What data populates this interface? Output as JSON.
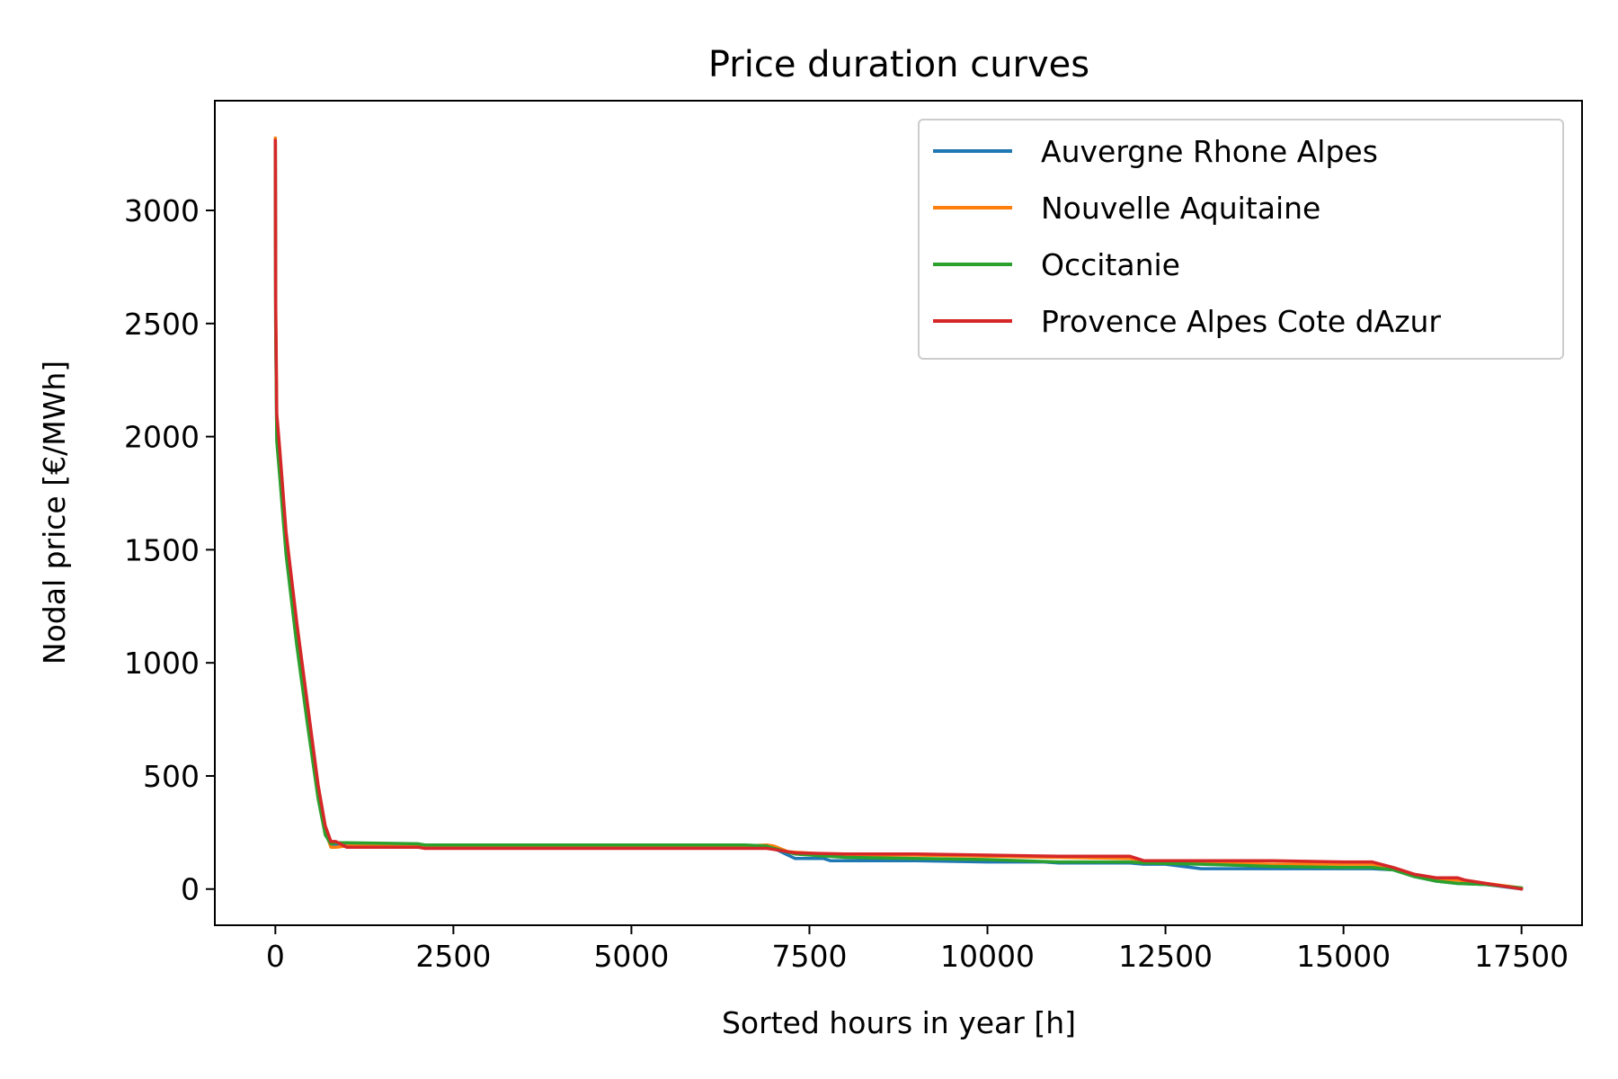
{
  "chart_data": {
    "type": "line",
    "title": "Price duration curves",
    "xlabel": "Sorted hours in year [h]",
    "ylabel": "Nodal price [€/MWh]",
    "xlim": [
      -850,
      18350
    ],
    "ylim": [
      -160,
      3485
    ],
    "xticks": [
      0,
      2500,
      5000,
      7500,
      10000,
      12500,
      15000,
      17500
    ],
    "yticks": [
      0,
      500,
      1000,
      1500,
      2000,
      2500,
      3000
    ],
    "grid": false,
    "legend_position": "top-right",
    "series": [
      {
        "name": "Auvergne Rhone Alpes",
        "color": "#1f77b4",
        "x": [
          0,
          5,
          20,
          60,
          150,
          300,
          450,
          600,
          700,
          780,
          850,
          1000,
          2000,
          2100,
          5000,
          6600,
          6900,
          7000,
          7300,
          7700,
          7800,
          9000,
          10000,
          10800,
          11000,
          12000,
          12200,
          12500,
          13000,
          13500,
          14000,
          15000,
          15400,
          15700,
          16000,
          16300,
          16600,
          17000,
          17500
        ],
        "y": [
          3310,
          2500,
          2000,
          1850,
          1500,
          1100,
          750,
          420,
          250,
          190,
          190,
          195,
          195,
          190,
          190,
          190,
          185,
          180,
          135,
          135,
          125,
          125,
          120,
          120,
          115,
          115,
          110,
          110,
          90,
          90,
          90,
          90,
          90,
          85,
          55,
          35,
          25,
          20,
          0
        ]
      },
      {
        "name": "Nouvelle Aquitaine",
        "color": "#ff7f0e",
        "x": [
          0,
          5,
          20,
          60,
          150,
          300,
          450,
          600,
          700,
          780,
          850,
          1000,
          2000,
          2100,
          5000,
          6600,
          6900,
          7000,
          7200,
          7700,
          8000,
          9000,
          10000,
          11000,
          12000,
          12200,
          13000,
          14000,
          15000,
          15400,
          15700,
          16000,
          16300,
          16600,
          17000,
          17500
        ],
        "y": [
          3320,
          2550,
          2050,
          1900,
          1540,
          1130,
          780,
          440,
          260,
          185,
          185,
          190,
          190,
          185,
          185,
          190,
          195,
          190,
          165,
          155,
          150,
          150,
          145,
          140,
          135,
          125,
          115,
          110,
          110,
          110,
          90,
          60,
          45,
          40,
          25,
          5
        ]
      },
      {
        "name": "Occitanie",
        "color": "#2ca02c",
        "x": [
          0,
          5,
          20,
          60,
          150,
          300,
          450,
          600,
          700,
          780,
          850,
          1000,
          2000,
          2100,
          5000,
          6600,
          6900,
          7000,
          7300,
          8000,
          9000,
          10000,
          11000,
          12000,
          12200,
          13000,
          14000,
          15000,
          15400,
          15700,
          16000,
          16300,
          16600,
          17000,
          17500
        ],
        "y": [
          3300,
          2480,
          1980,
          1830,
          1480,
          1080,
          730,
          400,
          240,
          200,
          205,
          205,
          200,
          195,
          195,
          195,
          190,
          180,
          155,
          140,
          135,
          130,
          120,
          120,
          115,
          110,
          100,
          95,
          95,
          85,
          55,
          35,
          25,
          20,
          5
        ]
      },
      {
        "name": "Provence Alpes Cote dAzur",
        "color": "#d62728",
        "x": [
          0,
          5,
          20,
          60,
          150,
          300,
          450,
          600,
          700,
          780,
          850,
          1000,
          2000,
          2100,
          5000,
          6600,
          6900,
          7000,
          7300,
          8000,
          9000,
          10000,
          11000,
          12000,
          12200,
          13000,
          14000,
          15000,
          15400,
          15700,
          16000,
          16300,
          16600,
          16700,
          17000,
          17500
        ],
        "y": [
          3310,
          2600,
          2100,
          1950,
          1580,
          1180,
          820,
          460,
          280,
          210,
          210,
          185,
          185,
          180,
          180,
          180,
          180,
          175,
          160,
          155,
          155,
          150,
          145,
          145,
          125,
          125,
          125,
          120,
          120,
          95,
          65,
          50,
          50,
          40,
          25,
          0
        ]
      }
    ]
  }
}
